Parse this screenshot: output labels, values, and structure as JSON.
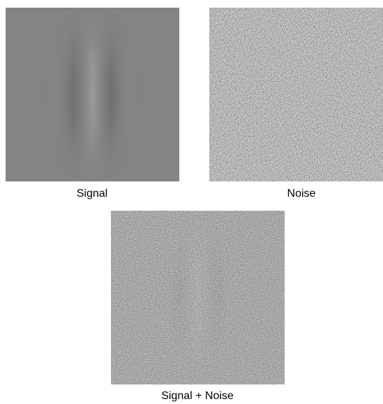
{
  "panels": [
    {
      "caption": "Signal"
    },
    {
      "caption": "Noise"
    },
    {
      "caption": "Signal + Noise"
    }
  ]
}
